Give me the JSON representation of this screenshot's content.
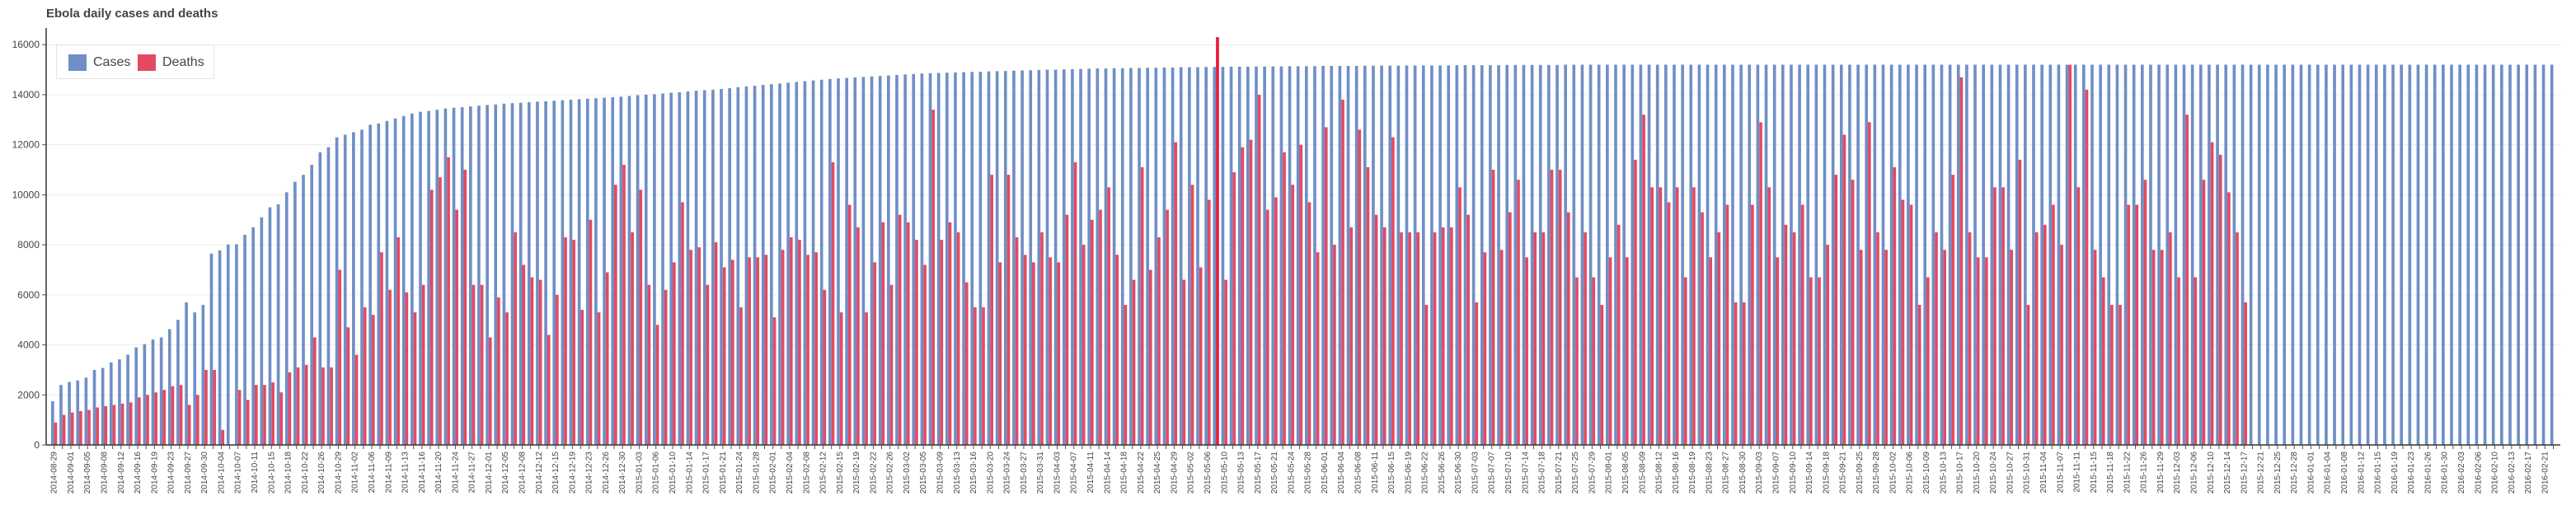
{
  "chart_data": {
    "type": "bar",
    "title": "Ebola daily cases and deaths",
    "xlabel": "",
    "ylabel": "",
    "ylim": [
      0,
      16600
    ],
    "yticks": [
      0,
      2000,
      4000,
      6000,
      8000,
      10000,
      12000,
      14000,
      16000
    ],
    "grid": true,
    "legend_position": "top-left",
    "colors": {
      "cases": "#6f8fc5",
      "deaths": "#e34a62",
      "highlight": "#e8193b"
    },
    "first_date": "2014-08-29",
    "last_date": "2016-02-23",
    "series": [
      {
        "name": "Cases",
        "values": [
          1750,
          2400,
          2520,
          2580,
          2690,
          3000,
          3080,
          3300,
          3420,
          3610,
          3900,
          4030,
          4220,
          4300,
          4630,
          5000,
          5700,
          5300,
          5600,
          7650,
          7780,
          8010,
          8020,
          8400,
          8700,
          9100,
          9500,
          9620,
          10100,
          10520,
          10800,
          11200,
          11700,
          11900,
          12300,
          12400,
          12500,
          12600,
          12800,
          12850,
          12950,
          13050,
          13150,
          13250,
          13320,
          13350,
          13400,
          13450,
          13480,
          13500,
          13530,
          13560,
          13590,
          13610,
          13640,
          13660,
          13680,
          13700,
          13720,
          13740,
          13760,
          13780,
          13800,
          13820,
          13840,
          13860,
          13880,
          13900,
          13920,
          13950,
          13980,
          14000,
          14020,
          14050,
          14080,
          14100,
          14130,
          14160,
          14180,
          14200,
          14230,
          14260,
          14300,
          14330,
          14360,
          14390,
          14420,
          14450,
          14480,
          14510,
          14540,
          14570,
          14600,
          14630,
          14650,
          14670,
          14690,
          14710,
          14730,
          14750,
          14770,
          14790,
          14810,
          14830,
          14850,
          14860,
          14870,
          14880,
          14890,
          14900,
          14910,
          14920,
          14930,
          14940,
          14950,
          14960,
          14970,
          14980,
          14990,
          15000,
          15000,
          15010,
          15020,
          15030,
          15040,
          15050,
          15050,
          15060,
          15060,
          15070,
          15070,
          15080,
          15080,
          15090,
          15090,
          15100,
          15100,
          15100,
          15110,
          15110,
          15110,
          15120,
          15120,
          15120,
          15130,
          15130,
          15130,
          15130,
          15140,
          15140,
          15140,
          15140,
          15150,
          15150,
          15150,
          15150,
          15150,
          15160,
          15160,
          15160,
          15160,
          15160,
          15170,
          15170,
          15170,
          15170,
          15170,
          15170,
          15180,
          15180,
          15180,
          15180,
          15180,
          15180,
          15190,
          15190,
          15190,
          15190,
          15190,
          15190,
          15190,
          15200,
          15200,
          15200,
          15200,
          15200,
          15200,
          15200,
          15200,
          15200,
          15200,
          15200,
          15200,
          15200,
          15200,
          15200,
          15200,
          15200,
          15200,
          15200,
          15200,
          15200,
          15200,
          15200,
          15200,
          15200,
          15200,
          15200,
          15200,
          15200,
          15200,
          15200,
          15200,
          15200,
          15200,
          15200,
          15200,
          15200,
          15200,
          15200,
          15200,
          15200,
          15200,
          15200,
          15200,
          15200,
          15200,
          15200,
          15200,
          15200,
          15200,
          15200,
          15200,
          15200,
          15200,
          15200,
          15200,
          15200,
          15200,
          15200,
          15200,
          15200,
          15200,
          15200,
          15200,
          15200,
          15200,
          15200,
          15200,
          15200,
          15200,
          15200,
          15200,
          15200,
          15200,
          15200,
          15200,
          15200,
          15200,
          15200,
          15200,
          15200,
          15200,
          15200,
          15200,
          15200,
          15200,
          15200,
          15200,
          15200,
          15200,
          15200,
          15200,
          15200,
          15200,
          15200,
          15200,
          15200,
          15200,
          15200,
          15200,
          15200,
          15200,
          15200,
          15200,
          15200,
          15200,
          15200,
          15200,
          15200,
          15200,
          15200,
          15200,
          15200,
          15200,
          15200,
          15200,
          15200,
          15200,
          15200
        ]
      },
      {
        "name": "Deaths",
        "values": [
          900,
          1200,
          1300,
          1350,
          1400,
          1500,
          1550,
          1600,
          1650,
          1700,
          1900,
          2000,
          2100,
          2200,
          2350,
          2400,
          1600,
          2000,
          3000,
          3000,
          600,
          0,
          2200,
          1800,
          2400,
          2400,
          2500,
          2100,
          2900,
          3100,
          3200,
          4300,
          3100,
          3100,
          7000,
          4700,
          3600,
          5500,
          5200,
          7700,
          6200,
          8300,
          6100,
          5300,
          6400,
          10200,
          10700,
          11500,
          9400,
          11000,
          6400,
          6400,
          4300,
          5900,
          5300,
          8500,
          7200,
          6700,
          6600,
          4400,
          6000,
          8300,
          8200,
          5400,
          9000,
          5300,
          6900,
          10400,
          11200,
          8500,
          10200,
          6400,
          4800,
          6200,
          7300,
          9700,
          7800,
          7900,
          6400,
          8100,
          7100,
          7400,
          5500,
          7500,
          7500,
          7600,
          5100,
          7800,
          8300,
          8200,
          7600,
          7700,
          6200,
          11300,
          5300,
          9600,
          8700,
          5300,
          7300,
          8900,
          6400,
          9200,
          8900,
          8200,
          7200,
          13400,
          8200,
          8900,
          8500,
          6500,
          5500,
          5500,
          10800,
          7300,
          10800,
          8300,
          7600,
          7300,
          8500,
          7500,
          7300,
          9200,
          11300,
          8000,
          9000,
          9400,
          10300,
          7600,
          5600,
          6600,
          11100,
          7000,
          8300,
          9400,
          12100,
          6600,
          10400,
          7100,
          9800,
          16300,
          6600,
          10900,
          11900,
          12200,
          14000,
          9400,
          9900,
          11700,
          10400,
          12000,
          9700,
          7700,
          12700,
          8000,
          13800,
          8700,
          12600,
          11100,
          9200,
          8700,
          12300,
          8500,
          8500,
          8500,
          5600,
          8500,
          8700,
          8700,
          10300,
          9200,
          5700,
          7700,
          11000,
          7800,
          9300,
          10600,
          7500,
          8500,
          8500,
          11000,
          11000,
          9300,
          6700,
          8500,
          6700,
          5600,
          7500,
          8800,
          7500,
          11400,
          13200,
          10300,
          10300,
          9700,
          10300,
          6700,
          10300,
          9300,
          7500,
          8500,
          9600,
          5700,
          5700,
          9600,
          12900,
          10300,
          7500,
          8800,
          8500,
          9600,
          6700,
          6700,
          8000,
          10800,
          12400,
          10600,
          7800,
          12900,
          8500,
          7800,
          11100,
          9800,
          9600,
          5600,
          6700,
          8500,
          7800,
          10800,
          14700,
          8500,
          7500,
          7500,
          10300,
          10300,
          7800,
          11400,
          5600,
          8500,
          8800,
          9600,
          8000,
          15200,
          10300,
          14200,
          7800,
          6700,
          5600,
          5600,
          9600,
          9600,
          10600,
          7800,
          7800,
          8500,
          6700,
          13200,
          6700,
          10600,
          12100,
          11600,
          10100,
          8500,
          5700
        ]
      }
    ]
  },
  "legend": {
    "cases": "Cases",
    "deaths": "Deaths"
  }
}
